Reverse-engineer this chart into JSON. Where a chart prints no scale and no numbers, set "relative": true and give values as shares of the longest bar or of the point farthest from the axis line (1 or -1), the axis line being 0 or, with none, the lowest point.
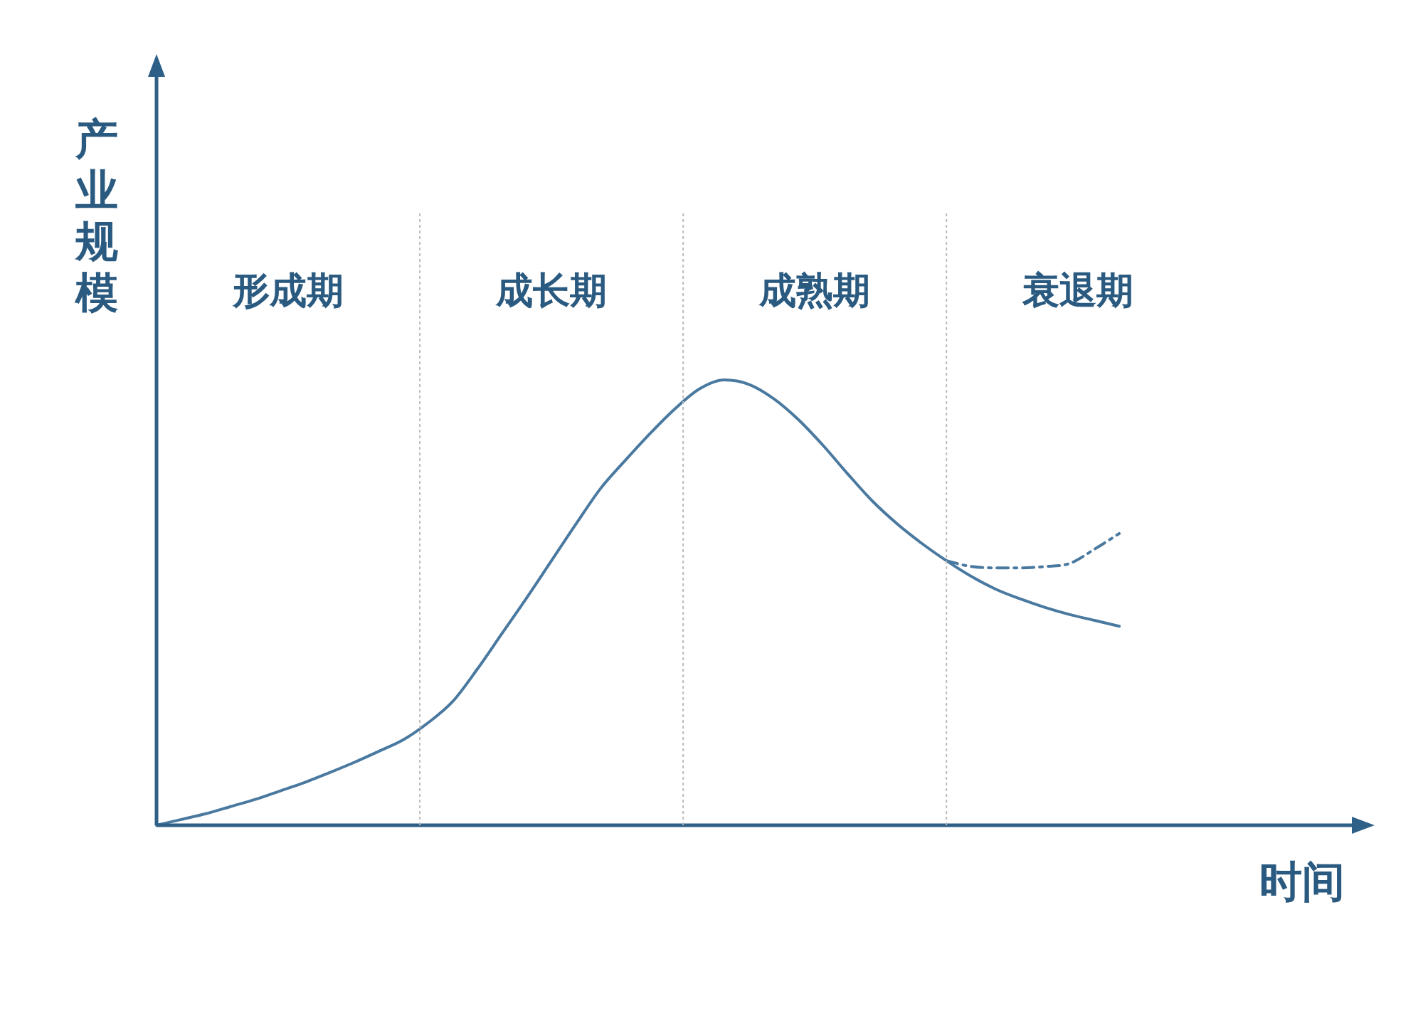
{
  "chart_data": {
    "type": "line",
    "relative": true,
    "xlabel": "时间",
    "ylabel": "产业规模",
    "legend": false,
    "marker": "none",
    "categories": [
      null,
      null,
      null,
      null,
      null,
      null,
      null,
      null,
      null,
      null,
      null,
      null,
      null,
      null,
      null,
      null,
      null,
      null,
      null,
      null,
      null,
      null,
      null,
      null,
      null,
      null,
      null,
      null,
      null,
      null,
      null,
      null,
      null,
      null,
      null,
      null,
      null,
      null,
      null,
      null,
      null,
      null,
      null,
      null,
      null,
      null,
      null,
      null,
      null,
      null
    ],
    "annotations": [
      "形成期",
      "成长期",
      "成熟期",
      "衰退期"
    ],
    "series": [
      {
        "color": "#4a79a0",
        "line_style": "solid",
        "values": [
          0,
          0.013,
          0.026,
          0.042,
          0.058,
          0.077,
          0.096,
          0.118,
          0.141,
          0.166,
          0.192,
          0.23,
          0.278,
          0.351,
          0.431,
          0.511,
          0.594,
          0.677,
          0.757,
          0.82,
          0.88,
          0.935,
          0.98,
          1,
          0.99,
          0.958,
          0.911,
          0.853,
          0.789,
          0.728,
          0.677,
          0.633,
          0.594,
          0.559,
          0.53,
          0.508,
          0.489,
          0.473,
          0.46,
          0.447,
          null,
          null,
          null,
          null,
          null,
          null,
          null,
          null,
          null,
          null
        ]
      },
      {
        "color": "#4a79a0",
        "line_style": "dashed",
        "values": [
          null,
          null,
          null,
          null,
          null,
          null,
          null,
          null,
          null,
          null,
          null,
          null,
          null,
          null,
          null,
          null,
          null,
          null,
          null,
          null,
          null,
          null,
          null,
          null,
          null,
          null,
          null,
          null,
          null,
          null,
          null,
          null,
          0.594,
          0.581,
          0.578,
          0.578,
          0.581,
          0.588,
          0.62,
          0.655,
          null,
          null,
          null,
          null,
          null,
          null,
          null,
          null,
          null,
          null
        ]
      }
    ]
  }
}
